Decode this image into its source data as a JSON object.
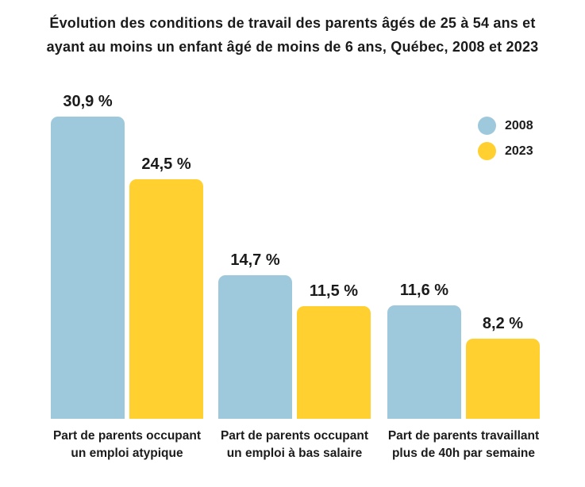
{
  "title": {
    "line1": "Évolution des conditions de travail des parents âgés de 25 à 54 ans et",
    "line2": "ayant au moins un enfant âgé de moins de 6 ans, Québec, 2008 et 2023"
  },
  "legend": [
    {
      "label": "2008",
      "color": "#9EC9DC"
    },
    {
      "label": "2023",
      "color": "#FFD02F"
    }
  ],
  "colors": {
    "series_2008": "#9EC9DC",
    "series_2023": "#FFD02F",
    "text": "#1b1b1b",
    "background": "#ffffff"
  },
  "chart_data": {
    "type": "bar",
    "title": "Évolution des conditions de travail des parents âgés de 25 à 54 ans et ayant au moins un enfant âgé de moins de 6 ans, Québec, 2008 et 2023",
    "categories": [
      [
        "Part de parents occupant",
        "un emploi atypique"
      ],
      [
        "Part de parents occupant",
        "un emploi à bas salaire"
      ],
      [
        "Part de parents travaillant",
        "plus de 40h par semaine"
      ]
    ],
    "series": [
      {
        "name": "2008",
        "color": "#9EC9DC",
        "values": [
          30.9,
          14.7,
          11.6
        ],
        "value_labels": [
          "30,9 %",
          "14,7 %",
          "11,6 %"
        ]
      },
      {
        "name": "2023",
        "color": "#FFD02F",
        "values": [
          24.5,
          11.5,
          8.2
        ],
        "value_labels": [
          "24,5 %",
          "11,5 %",
          "8,2 %"
        ]
      }
    ],
    "unit": "%",
    "xlabel": "",
    "ylabel": "",
    "ylim": [
      0,
      32
    ],
    "grid": false,
    "axes_shown": false,
    "legend_position": "top-right",
    "value_labels_shown": true
  }
}
